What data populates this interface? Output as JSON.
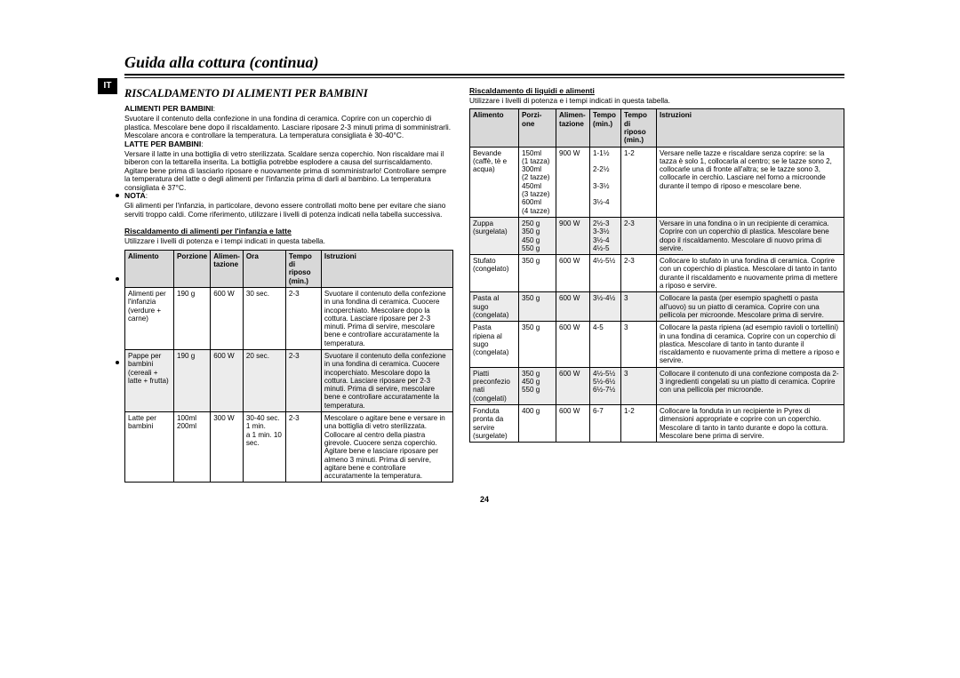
{
  "page": {
    "title": "Guida alla cottura (continua)",
    "lang_badge": "IT",
    "page_number": "24"
  },
  "left": {
    "heading": "RISCALDAMENTO DI ALIMENTI PER BAMBINI",
    "s1_title": "ALIMENTI PER BAMBINI",
    "s1_body": "Svuotare il contenuto della confezione in una fondina di ceramica. Coprire con un coperchio di plastica. Mescolare bene dopo il riscaldamento. Lasciare riposare 2-3 minuti prima di somministrarli. Mescolare ancora e controllare la temperatura. La temperatura consigliata è 30-40°C.",
    "s2_title": "LATTE PER BAMBINI",
    "s2_body": "Versare il latte in una bottiglia di vetro sterilizzata. Scaldare senza coperchio. Non riscaldare mai il biberon con la tettarella inserita. La bottiglia potrebbe esplodere a causa del surriscaldamento. Agitare bene prima di lasciarlo riposare e nuovamente prima di somministrarlo! Controllare sempre la temperatura del latte o degli alimenti per l'infanzia prima di darli al bambino. La temperatura consigliata è 37°C.",
    "s3_title": "NOTA",
    "s3_body": "Gli alimenti per l'infanzia, in particolare, devono essere controllati molto bene per evitare che siano serviti troppo caldi. Come riferimento, utilizzare i livelli di potenza indicati nella tabella successiva.",
    "t1_title": "Riscaldamento di alimenti per l'infanzia e latte",
    "t1_sub": "Utilizzare i livelli di potenza e i tempi indicati in questa tabella.",
    "t1_headers": [
      "Alimento",
      "Porzione",
      "Alimen-\ntazione",
      "Ora",
      "Tempo di\nriposo\n(min.)",
      "Istruzioni"
    ],
    "t1_rows": [
      {
        "c": [
          "Alimenti per\nl'infanzia\n(verdure +\ncarne)",
          "190 g",
          "600 W",
          "30 sec.",
          "2-3",
          "Svuotare il contenuto della confezione in una fondina di ceramica. Cuocere incoperchiato. Mescolare dopo la cottura. Lasciare riposare per 2-3 minuti. Prima di servire, mescolare bene e controllare accuratamente la temperatura."
        ],
        "alt": false
      },
      {
        "c": [
          "Pappe per\nbambini\n(cereali +\nlatte + frutta)",
          "190 g",
          "600 W",
          "20 sec.",
          "2-3",
          "Svuotare il contenuto della confezione in una fondina di ceramica. Cuocere incoperchiato. Mescolare dopo la cottura. Lasciare riposare per 2-3 minuti. Prima di servire, mescolare bene e controllare accuratamente la temperatura."
        ],
        "alt": true
      },
      {
        "c": [
          "Latte per\nbambini",
          "100ml\n200ml",
          "300 W",
          "30-40 sec.\n1 min.\na 1 min. 10\nsec.",
          "2-3",
          "Mescolare o agitare bene e versare in una bottiglia di vetro sterilizzata. Collocare al centro della piastra girevole. Cuocere senza coperchio. Agitare bene e lasciare riposare per almeno 3 minuti. Prima di servire, agitare bene e controllare accuratamente la temperatura."
        ],
        "alt": false
      }
    ]
  },
  "right": {
    "t2_title": "Riscaldamento di liquidi e alimenti",
    "t2_sub": "Utilizzare i livelli di potenza e i tempi indicati in questa tabella.",
    "t2_headers": [
      "Alimento",
      "Porzi-\none",
      "Alimen-\ntazione",
      "Tempo\n(min.)",
      "Tempo di\nriposo\n(min.)",
      "Istruzioni"
    ],
    "t2_rows": [
      {
        "c": [
          "Bevande\n(caffè, tè e\nacqua)",
          "150ml\n(1 tazza)\n300ml\n(2 tazze)\n450ml\n(3 tazze)\n600ml\n(4 tazze)",
          "900 W",
          "1-1½\n\n2-2½\n\n3-3½\n\n3½-4",
          "1-2",
          "Versare nelle tazze e riscaldare senza coprire: se la tazza è solo 1, collocarla al centro; se le tazze sono 2, collocarle una di fronte all'altra; se le tazze sono 3, collocarle in cerchio. Lasciare nel forno a microonde durante il tempo di riposo e mescolare bene."
        ],
        "alt": false
      },
      {
        "c": [
          "Zuppa\n(surgelata)",
          "250 g\n350 g\n450 g\n550 g",
          "900 W",
          "2½-3\n3-3½\n3½-4\n4½-5",
          "2-3",
          "Versare in una fondina o in un recipiente di ceramica. Coprire con un coperchio di plastica. Mescolare bene dopo il riscaldamento. Mescolare di nuovo prima di servire."
        ],
        "alt": true
      },
      {
        "c": [
          "Stufato\n(congelato)",
          "350 g",
          "600 W",
          "4½-5½",
          "2-3",
          "Collocare lo stufato in una fondina di ceramica. Coprire con un coperchio di plastica. Mescolare di tanto in tanto durante il riscaldamento e nuovamente prima di mettere a riposo e servire."
        ],
        "alt": false
      },
      {
        "c": [
          "Pasta al\nsugo\n(congelata)",
          "350 g",
          "600 W",
          "3½-4½",
          "3",
          "Collocare la pasta (per esempio spaghetti o pasta all'uovo) su un piatto di ceramica. Coprire con una pellicola per microonde. Mescolare prima di servire."
        ],
        "alt": true
      },
      {
        "c": [
          "Pasta\nripiena al\nsugo\n(congelata)",
          "350 g",
          "600 W",
          "4-5",
          "3",
          "Collocare la pasta ripiena (ad esempio ravioli o tortellini) in una fondina di ceramica. Coprire con un coperchio di plastica. Mescolare di tanto in tanto durante il riscaldamento e nuovamente prima di mettere a riposo e servire."
        ],
        "alt": false
      },
      {
        "c": [
          "Piatti\npreconfezio\nnati\n(congelati)",
          "350 g\n450 g\n550 g",
          "600 W",
          "4½-5½\n5½-6½\n6½-7½",
          "3",
          "Collocare il contenuto di una confezione composta da 2-3 ingredienti congelati su un piatto di ceramica. Coprire con una pellicola per microonde."
        ],
        "alt": true
      },
      {
        "c": [
          "Fonduta\npronta da\nservire\n(surgelate)",
          "400 g",
          "600 W",
          "6-7",
          "1-2",
          "Collocare la fonduta in un recipiente in Pyrex di dimensioni appropriate e coprire con un coperchio.\nMescolare di tanto in tanto durante e dopo la cottura. Mescolare bene prima di servire."
        ],
        "alt": false
      }
    ]
  }
}
